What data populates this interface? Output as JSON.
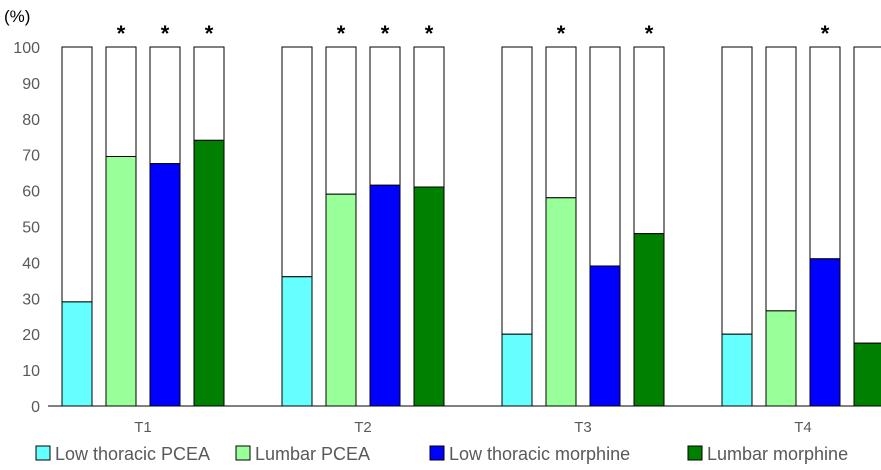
{
  "chart_data": {
    "type": "bar",
    "title": "",
    "xlabel": "",
    "ylabel": "(%)",
    "ylim": [
      0,
      100
    ],
    "yticks": [
      0,
      10,
      20,
      30,
      40,
      50,
      60,
      70,
      80,
      90,
      100
    ],
    "categories": [
      "T1",
      "T2",
      "T3",
      "T4"
    ],
    "series": [
      {
        "name": "Low thoracic PCEA",
        "color": "#66FFFF",
        "values": [
          29,
          36,
          20,
          20
        ],
        "significant": [
          false,
          false,
          false,
          false
        ]
      },
      {
        "name": "Lumbar PCEA",
        "color": "#99FF99",
        "values": [
          69.5,
          59,
          58,
          26.5
        ],
        "significant": [
          true,
          true,
          true,
          false
        ]
      },
      {
        "name": "Low thoracic morphine",
        "color": "#0000FF",
        "values": [
          67.5,
          61.5,
          39,
          41
        ],
        "significant": [
          true,
          true,
          false,
          true
        ]
      },
      {
        "name": "Lumbar morphine",
        "color": "#008000",
        "values": [
          74,
          61,
          48,
          17.5
        ],
        "significant": [
          true,
          true,
          true,
          false
        ]
      }
    ],
    "significance_marker": "*",
    "legend_position": "bottom",
    "grid": false
  }
}
